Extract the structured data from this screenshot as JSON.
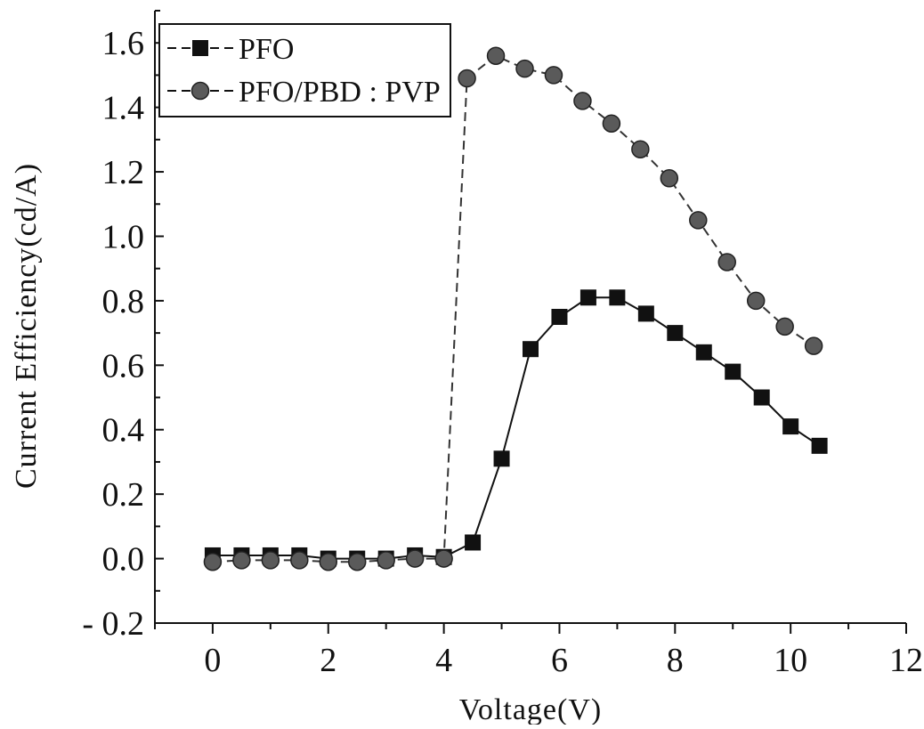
{
  "chart_data": {
    "type": "line",
    "title": "",
    "xlabel": "Voltage(V)",
    "ylabel": "Current Efficiency(cd/A)",
    "xlim": [
      -1,
      12
    ],
    "ylim": [
      -0.2,
      1.7
    ],
    "xticks": [
      0,
      2,
      4,
      6,
      8,
      10,
      12
    ],
    "xtick_labels": [
      "0",
      "2",
      "4",
      "6",
      "8",
      "10",
      "12"
    ],
    "yticks": [
      -0.2,
      0.0,
      0.2,
      0.4,
      0.6,
      0.8,
      1.0,
      1.2,
      1.4,
      1.6
    ],
    "ytick_labels": [
      "- 0.2",
      "0.0",
      "0.2",
      "0.4",
      "0.6",
      "0.8",
      "1.0",
      "1.2",
      "1.4",
      "1.6"
    ],
    "grid": false,
    "legend_position": "top-left",
    "series": [
      {
        "name": "PFO",
        "marker": "square",
        "line_style": "solid",
        "color": "#111111",
        "x": [
          0,
          0.5,
          1.0,
          1.5,
          2.0,
          2.5,
          3.0,
          3.5,
          4.0,
          4.5,
          5.0,
          5.5,
          6.0,
          6.5,
          7.0,
          7.5,
          8.0,
          8.5,
          9.0,
          9.5,
          10.0,
          10.5
        ],
        "y": [
          0.01,
          0.01,
          0.01,
          0.01,
          0.0,
          0.0,
          0.0,
          0.01,
          0.005,
          0.05,
          0.31,
          0.65,
          0.75,
          0.81,
          0.81,
          0.76,
          0.7,
          0.64,
          0.58,
          0.5,
          0.41,
          0.35
        ]
      },
      {
        "name": "PFO/PBD : PVP",
        "marker": "circle",
        "line_style": "dashed",
        "color": "#333333",
        "x": [
          0,
          0.5,
          1.0,
          1.5,
          2.0,
          2.5,
          3.0,
          3.5,
          4.0,
          4.4,
          4.9,
          5.4,
          5.9,
          6.4,
          6.9,
          7.4,
          7.9,
          8.4,
          8.9,
          9.4,
          9.9,
          10.4
        ],
        "y": [
          -0.01,
          -0.005,
          -0.005,
          -0.005,
          -0.01,
          -0.01,
          -0.005,
          0.0,
          0.0,
          1.49,
          1.56,
          1.52,
          1.5,
          1.42,
          1.35,
          1.27,
          1.18,
          1.05,
          0.92,
          0.8,
          0.72,
          0.66
        ]
      }
    ]
  }
}
